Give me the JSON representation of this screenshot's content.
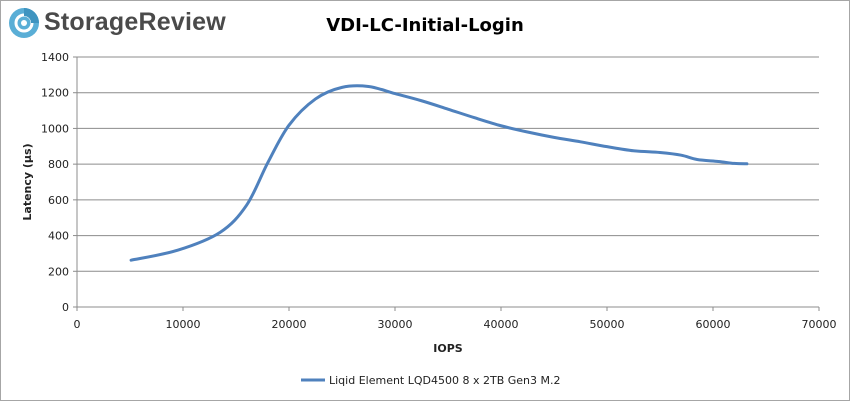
{
  "brand": {
    "name": "StorageReview",
    "logo_icon": "storagereview-disc-icon",
    "logo_color": "#5aaed6"
  },
  "chart_data": {
    "type": "line",
    "title": "VDI-LC-Initial-Login",
    "xlabel": "IOPS",
    "ylabel": "Latency (µs)",
    "xlim": [
      0,
      70000
    ],
    "ylim": [
      0,
      1400
    ],
    "xticks": [
      0,
      10000,
      20000,
      30000,
      40000,
      50000,
      60000,
      70000
    ],
    "yticks": [
      0,
      200,
      400,
      600,
      800,
      1000,
      1200,
      1400
    ],
    "grid": true,
    "legend_position": "bottom",
    "series": [
      {
        "name": "Liqid Element LQD4500 8 x 2TB Gen3 M.2",
        "color": "#4f81bd",
        "points": [
          [
            5100,
            262
          ],
          [
            9500,
            318
          ],
          [
            13500,
            418
          ],
          [
            16000,
            570
          ],
          [
            18000,
            808
          ],
          [
            20000,
            1018
          ],
          [
            22500,
            1165
          ],
          [
            25000,
            1230
          ],
          [
            27500,
            1235
          ],
          [
            30000,
            1195
          ],
          [
            32500,
            1155
          ],
          [
            35000,
            1108
          ],
          [
            37500,
            1060
          ],
          [
            40000,
            1015
          ],
          [
            42500,
            980
          ],
          [
            45000,
            950
          ],
          [
            47500,
            925
          ],
          [
            50000,
            898
          ],
          [
            52500,
            875
          ],
          [
            55000,
            865
          ],
          [
            57000,
            850
          ],
          [
            58500,
            826
          ],
          [
            60500,
            815
          ],
          [
            62000,
            804
          ],
          [
            63200,
            802
          ]
        ]
      }
    ]
  }
}
